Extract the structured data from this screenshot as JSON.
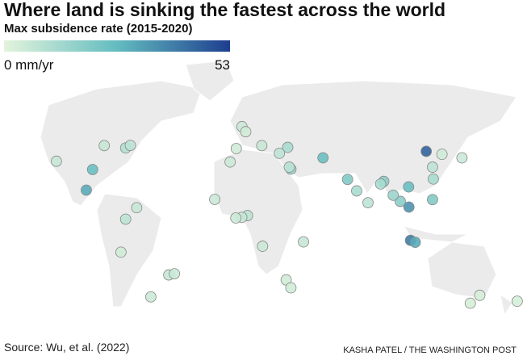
{
  "title": "Where land is sinking the fastest across the world",
  "subtitle": "Max subsidence rate (2015-2020)",
  "scale": {
    "min": {
      "value": 0,
      "label": "0 mm/yr"
    },
    "max": 53,
    "colors": [
      "#e3f4dc",
      "#63bcc0",
      "#1d3e8f"
    ]
  },
  "points": [
    {
      "lon": 117,
      "lat": 39,
      "rate": 45
    },
    {
      "lon": 107,
      "lat": -6,
      "rate": 40
    },
    {
      "lon": 110,
      "lat": -7,
      "rate": 30
    },
    {
      "lon": 106,
      "lat": 10.8,
      "rate": 35
    },
    {
      "lon": 121,
      "lat": 14.6,
      "rate": 20
    },
    {
      "lon": 105.8,
      "lat": 21,
      "rate": 25
    },
    {
      "lon": 90,
      "lat": 23.8,
      "rate": 18
    },
    {
      "lon": 88,
      "lat": 22.5,
      "rate": 12
    },
    {
      "lon": 80,
      "lat": 13,
      "rate": 8
    },
    {
      "lon": 72.8,
      "lat": 19,
      "rate": 12
    },
    {
      "lon": 67,
      "lat": 24.8,
      "rate": 20
    },
    {
      "lon": 51.4,
      "lat": 35.7,
      "rate": 25
    },
    {
      "lon": 29,
      "lat": 41,
      "rate": 12
    },
    {
      "lon": 31,
      "lat": 30,
      "rate": 15
    },
    {
      "lon": 30,
      "lat": 31,
      "rate": 8
    },
    {
      "lon": 3.4,
      "lat": 6.5,
      "rate": 8
    },
    {
      "lon": -0.2,
      "lat": 5.6,
      "rate": 6
    },
    {
      "lon": -4,
      "lat": 5.3,
      "rate": 5
    },
    {
      "lon": -17.4,
      "lat": 14.7,
      "rate": 5
    },
    {
      "lon": -7.6,
      "lat": 33.6,
      "rate": 5
    },
    {
      "lon": 13,
      "lat": -9,
      "rate": 5
    },
    {
      "lon": 39,
      "lat": -6.8,
      "rate": 6
    },
    {
      "lon": 28,
      "lat": -26,
      "rate": 4
    },
    {
      "lon": 31,
      "lat": -30,
      "rate": 4
    },
    {
      "lon": -95,
      "lat": 29.8,
      "rate": 25
    },
    {
      "lon": -99,
      "lat": 19.4,
      "rate": 30
    },
    {
      "lon": -118,
      "lat": 34,
      "rate": 6
    },
    {
      "lon": -74,
      "lat": 40.7,
      "rate": 10
    },
    {
      "lon": -71,
      "lat": 42,
      "rate": 8
    },
    {
      "lon": -87.6,
      "lat": 41.9,
      "rate": 6
    },
    {
      "lon": -77,
      "lat": -12,
      "rate": 4
    },
    {
      "lon": -74,
      "lat": 4.7,
      "rate": 8
    },
    {
      "lon": -67,
      "lat": 10.5,
      "rate": 6
    },
    {
      "lon": -58,
      "lat": -34.6,
      "rate": 5
    },
    {
      "lon": -46.6,
      "lat": -23.5,
      "rate": 6
    },
    {
      "lon": -43,
      "lat": -22.9,
      "rate": 5
    },
    {
      "lon": 151,
      "lat": -33.8,
      "rate": 3
    },
    {
      "lon": 145,
      "lat": -37.8,
      "rate": 3
    },
    {
      "lon": 174.8,
      "lat": -36.8,
      "rate": 3
    },
    {
      "lon": 121,
      "lat": 31,
      "rate": 8
    },
    {
      "lon": 139.7,
      "lat": 35.7,
      "rate": 5
    },
    {
      "lon": 127,
      "lat": 37.5,
      "rate": 4
    },
    {
      "lon": 121.5,
      "lat": 25,
      "rate": 12
    },
    {
      "lon": 100.5,
      "lat": 13.7,
      "rate": 18
    },
    {
      "lon": 96,
      "lat": 16.8,
      "rate": 15
    },
    {
      "lon": -0.1,
      "lat": 51.5,
      "rate": 5
    },
    {
      "lon": 2.3,
      "lat": 48.9,
      "rate": 4
    },
    {
      "lon": -3.7,
      "lat": 40.4,
      "rate": 4
    },
    {
      "lon": 12.5,
      "lat": 41.9,
      "rate": 6
    },
    {
      "lon": 23.7,
      "lat": 38,
      "rate": 8
    }
  ],
  "source": "Source: Wu, et al. (2022)",
  "credit": "KASHA PATEL / THE WASHINGTON POST"
}
